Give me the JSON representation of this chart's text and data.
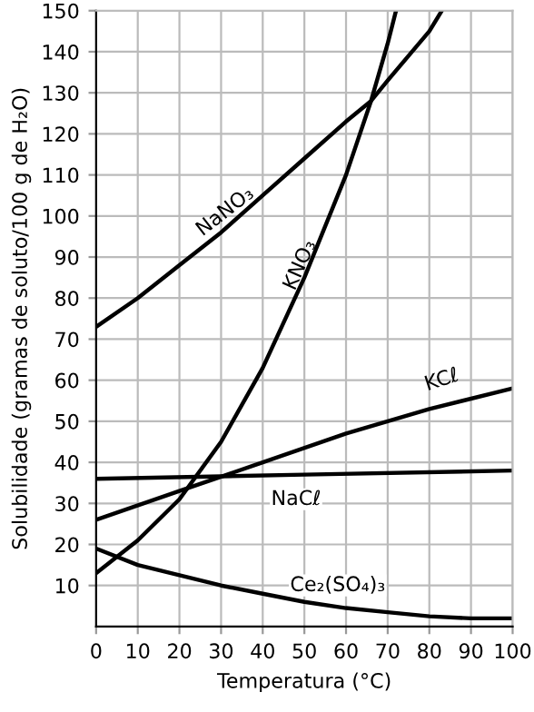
{
  "chart_data": {
    "type": "line",
    "xlabel": "Temperatura (°C)",
    "ylabel": "Solubilidade (gramas de soluto/100 g de H₂O)",
    "xlim": [
      0,
      100
    ],
    "xticks": [
      0,
      10,
      20,
      30,
      40,
      50,
      60,
      70,
      80,
      90,
      100
    ],
    "ylim": [
      0,
      150
    ],
    "yticks": [
      10,
      20,
      30,
      40,
      50,
      60,
      70,
      80,
      90,
      100,
      110,
      120,
      130,
      140,
      150
    ],
    "grid": true,
    "legend": false,
    "marker": "none",
    "line_style": "solid",
    "series": [
      {
        "name": "NaNO₃",
        "color": "#000000",
        "x": [
          0,
          10,
          20,
          30,
          40,
          50,
          60,
          66,
          70,
          80,
          83
        ],
        "values": [
          73,
          80,
          88,
          96,
          105,
          114,
          123,
          128,
          133,
          145,
          150
        ]
      },
      {
        "name": "KNO₃",
        "color": "#000000",
        "x": [
          0,
          10,
          20,
          30,
          40,
          50,
          60,
          66,
          70,
          72
        ],
        "values": [
          13,
          21,
          31,
          45,
          63,
          85,
          110,
          128,
          142,
          150
        ]
      },
      {
        "name": "KCℓ",
        "color": "#000000",
        "x": [
          0,
          20,
          40,
          60,
          80,
          100
        ],
        "values": [
          26,
          33,
          40,
          47,
          53,
          58
        ]
      },
      {
        "name": "NaCℓ",
        "color": "#000000",
        "x": [
          0,
          50,
          100
        ],
        "values": [
          36,
          37,
          38
        ]
      },
      {
        "name": "Ce₂(SO₄)₃",
        "color": "#000000",
        "x": [
          0,
          10,
          20,
          30,
          40,
          50,
          60,
          70,
          80,
          90,
          100
        ],
        "values": [
          19,
          15,
          12.5,
          10,
          8,
          6,
          4.5,
          3.5,
          2.5,
          2,
          2
        ]
      }
    ]
  }
}
